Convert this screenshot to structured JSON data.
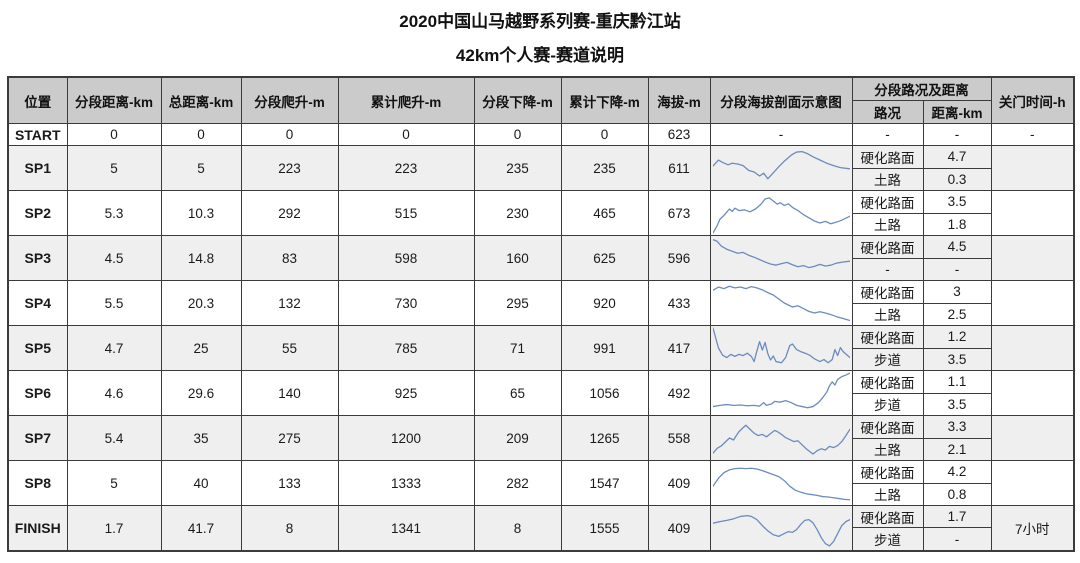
{
  "title": "2020中国山马越野系列赛-重庆黔江站",
  "subtitle": "42km个人赛-赛道说明",
  "colors": {
    "header_bg": "#cbcbcb",
    "stripe_bg": "#efefef",
    "border_dark": "#3b3b3b",
    "border_light": "#9a9a9a",
    "profile_line": "#6b8cbe"
  },
  "header": {
    "position": "位置",
    "seg_dist": "分段距离-km",
    "total_dist": "总距离-km",
    "seg_climb": "分段爬升-m",
    "cum_climb": "累计爬升-m",
    "seg_desc": "分段下降-m",
    "cum_desc": "累计下降-m",
    "altitude": "海拔-m",
    "profile": "分段海拔剖面示意图",
    "surface_group": "分段路况及距离",
    "surface": "路况",
    "surface_dist": "距离-km",
    "cutoff": "关门时间-h"
  },
  "chart_data": {
    "type": "table",
    "title": "42km个人赛-赛道说明",
    "note": "rows[].profile_points are normalized sparkline elevation profiles (x 0-100 left-right, y 0-100 top-down)"
  },
  "rows": [
    {
      "label": "START",
      "seg_dist": "0",
      "total_dist": "0",
      "seg_climb": "0",
      "cum_climb": "0",
      "seg_desc": "0",
      "cum_desc": "0",
      "altitude": "623",
      "striped": false,
      "profile_points": null,
      "profile_placeholder": "-",
      "surfaces": [
        {
          "type": "-",
          "dist": "-"
        }
      ],
      "cutoff": "-"
    },
    {
      "label": "SP1",
      "seg_dist": "5",
      "total_dist": "5",
      "seg_climb": "223",
      "cum_climb": "223",
      "seg_desc": "235",
      "cum_desc": "235",
      "altitude": "611",
      "striped": true,
      "profile_points": [
        [
          0,
          45
        ],
        [
          4,
          30
        ],
        [
          7,
          36
        ],
        [
          11,
          42
        ],
        [
          14,
          38
        ],
        [
          18,
          40
        ],
        [
          22,
          44
        ],
        [
          26,
          56
        ],
        [
          30,
          60
        ],
        [
          34,
          70
        ],
        [
          37,
          63
        ],
        [
          40,
          77
        ],
        [
          44,
          62
        ],
        [
          48,
          47
        ],
        [
          52,
          33
        ],
        [
          57,
          18
        ],
        [
          61,
          10
        ],
        [
          65,
          9
        ],
        [
          69,
          14
        ],
        [
          73,
          22
        ],
        [
          78,
          30
        ],
        [
          83,
          38
        ],
        [
          88,
          44
        ],
        [
          93,
          49
        ],
        [
          100,
          52
        ]
      ],
      "surfaces": [
        {
          "type": "硬化路面",
          "dist": "4.7"
        },
        {
          "type": "土路",
          "dist": "0.3"
        }
      ],
      "cutoff": ""
    },
    {
      "label": "SP2",
      "seg_dist": "5.3",
      "total_dist": "10.3",
      "seg_climb": "292",
      "cum_climb": "515",
      "seg_desc": "230",
      "cum_desc": "465",
      "altitude": "673",
      "striped": false,
      "profile_points": [
        [
          0,
          100
        ],
        [
          3,
          82
        ],
        [
          5,
          66
        ],
        [
          8,
          56
        ],
        [
          10,
          48
        ],
        [
          12,
          40
        ],
        [
          14,
          46
        ],
        [
          16,
          38
        ],
        [
          19,
          44
        ],
        [
          23,
          42
        ],
        [
          27,
          47
        ],
        [
          31,
          40
        ],
        [
          35,
          28
        ],
        [
          38,
          15
        ],
        [
          41,
          12
        ],
        [
          44,
          20
        ],
        [
          47,
          28
        ],
        [
          49,
          24
        ],
        [
          52,
          31
        ],
        [
          55,
          27
        ],
        [
          58,
          36
        ],
        [
          62,
          44
        ],
        [
          66,
          54
        ],
        [
          70,
          62
        ],
        [
          74,
          70
        ],
        [
          78,
          75
        ],
        [
          82,
          71
        ],
        [
          86,
          77
        ],
        [
          90,
          73
        ],
        [
          94,
          68
        ],
        [
          100,
          58
        ]
      ],
      "surfaces": [
        {
          "type": "硬化路面",
          "dist": "3.5"
        },
        {
          "type": "土路",
          "dist": "1.8"
        }
      ],
      "cutoff": ""
    },
    {
      "label": "SP3",
      "seg_dist": "4.5",
      "total_dist": "14.8",
      "seg_climb": "83",
      "cum_climb": "598",
      "seg_desc": "160",
      "cum_desc": "625",
      "altitude": "596",
      "striped": true,
      "profile_points": [
        [
          0,
          4
        ],
        [
          3,
          8
        ],
        [
          6,
          20
        ],
        [
          10,
          28
        ],
        [
          14,
          33
        ],
        [
          18,
          38
        ],
        [
          22,
          36
        ],
        [
          26,
          43
        ],
        [
          30,
          48
        ],
        [
          34,
          54
        ],
        [
          38,
          60
        ],
        [
          42,
          65
        ],
        [
          46,
          68
        ],
        [
          50,
          64
        ],
        [
          54,
          61
        ],
        [
          58,
          67
        ],
        [
          62,
          72
        ],
        [
          66,
          69
        ],
        [
          70,
          74
        ],
        [
          74,
          71
        ],
        [
          78,
          66
        ],
        [
          82,
          70
        ],
        [
          86,
          68
        ],
        [
          90,
          63
        ],
        [
          95,
          60
        ],
        [
          100,
          58
        ]
      ],
      "surfaces": [
        {
          "type": "硬化路面",
          "dist": "4.5"
        },
        {
          "type": "-",
          "dist": "-"
        }
      ],
      "cutoff": ""
    },
    {
      "label": "SP4",
      "seg_dist": "5.5",
      "total_dist": "20.3",
      "seg_climb": "132",
      "cum_climb": "730",
      "seg_desc": "295",
      "cum_desc": "920",
      "altitude": "433",
      "striped": false,
      "profile_points": [
        [
          0,
          18
        ],
        [
          4,
          10
        ],
        [
          8,
          14
        ],
        [
          12,
          8
        ],
        [
          16,
          12
        ],
        [
          20,
          10
        ],
        [
          24,
          14
        ],
        [
          28,
          9
        ],
        [
          32,
          12
        ],
        [
          36,
          17
        ],
        [
          40,
          24
        ],
        [
          44,
          30
        ],
        [
          48,
          40
        ],
        [
          52,
          50
        ],
        [
          55,
          55
        ],
        [
          58,
          60
        ],
        [
          62,
          57
        ],
        [
          66,
          64
        ],
        [
          70,
          71
        ],
        [
          74,
          75
        ],
        [
          78,
          72
        ],
        [
          82,
          75
        ],
        [
          86,
          79
        ],
        [
          90,
          84
        ],
        [
          95,
          89
        ],
        [
          100,
          94
        ]
      ],
      "surfaces": [
        {
          "type": "硬化路面",
          "dist": "3"
        },
        {
          "type": "土路",
          "dist": "2.5"
        }
      ],
      "cutoff": ""
    },
    {
      "label": "SP5",
      "seg_dist": "4.7",
      "total_dist": "25",
      "seg_climb": "55",
      "cum_climb": "785",
      "seg_desc": "71",
      "cum_desc": "991",
      "altitude": "417",
      "striped": true,
      "profile_points": [
        [
          0,
          0
        ],
        [
          2,
          25
        ],
        [
          4,
          50
        ],
        [
          7,
          68
        ],
        [
          10,
          74
        ],
        [
          13,
          66
        ],
        [
          16,
          71
        ],
        [
          19,
          66
        ],
        [
          22,
          69
        ],
        [
          25,
          63
        ],
        [
          28,
          71
        ],
        [
          30,
          84
        ],
        [
          32,
          58
        ],
        [
          34,
          34
        ],
        [
          36,
          55
        ],
        [
          38,
          36
        ],
        [
          40,
          64
        ],
        [
          42,
          80
        ],
        [
          44,
          70
        ],
        [
          46,
          84
        ],
        [
          50,
          87
        ],
        [
          53,
          74
        ],
        [
          56,
          44
        ],
        [
          58,
          40
        ],
        [
          61,
          54
        ],
        [
          64,
          59
        ],
        [
          68,
          64
        ],
        [
          71,
          69
        ],
        [
          74,
          77
        ],
        [
          78,
          84
        ],
        [
          81,
          79
        ],
        [
          84,
          87
        ],
        [
          87,
          79
        ],
        [
          89,
          54
        ],
        [
          91,
          69
        ],
        [
          93,
          49
        ],
        [
          95,
          59
        ],
        [
          100,
          74
        ]
      ],
      "surfaces": [
        {
          "type": "硬化路面",
          "dist": "1.2"
        },
        {
          "type": "步道",
          "dist": "3.5"
        }
      ],
      "cutoff": ""
    },
    {
      "label": "SP6",
      "seg_dist": "4.6",
      "total_dist": "29.6",
      "seg_climb": "140",
      "cum_climb": "925",
      "seg_desc": "65",
      "cum_desc": "1056",
      "altitude": "492",
      "striped": false,
      "profile_points": [
        [
          0,
          84
        ],
        [
          5,
          81
        ],
        [
          10,
          79
        ],
        [
          15,
          81
        ],
        [
          20,
          80
        ],
        [
          25,
          82
        ],
        [
          30,
          81
        ],
        [
          34,
          83
        ],
        [
          37,
          74
        ],
        [
          39,
          81
        ],
        [
          43,
          77
        ],
        [
          45,
          71
        ],
        [
          49,
          73
        ],
        [
          53,
          69
        ],
        [
          57,
          74
        ],
        [
          61,
          81
        ],
        [
          65,
          84
        ],
        [
          69,
          87
        ],
        [
          73,
          84
        ],
        [
          77,
          74
        ],
        [
          80,
          62
        ],
        [
          83,
          48
        ],
        [
          85,
          32
        ],
        [
          87,
          22
        ],
        [
          89,
          30
        ],
        [
          91,
          16
        ],
        [
          94,
          9
        ],
        [
          97,
          5
        ],
        [
          100,
          0
        ]
      ],
      "surfaces": [
        {
          "type": "硬化路面",
          "dist": "1.1"
        },
        {
          "type": "步道",
          "dist": "3.5"
        }
      ],
      "cutoff": ""
    },
    {
      "label": "SP7",
      "seg_dist": "5.4",
      "total_dist": "35",
      "seg_climb": "275",
      "cum_climb": "1200",
      "seg_desc": "209",
      "cum_desc": "1265",
      "altitude": "558",
      "striped": true,
      "profile_points": [
        [
          0,
          88
        ],
        [
          3,
          76
        ],
        [
          6,
          70
        ],
        [
          9,
          60
        ],
        [
          12,
          50
        ],
        [
          15,
          55
        ],
        [
          17,
          44
        ],
        [
          19,
          34
        ],
        [
          22,
          24
        ],
        [
          24,
          18
        ],
        [
          27,
          28
        ],
        [
          30,
          38
        ],
        [
          33,
          44
        ],
        [
          36,
          41
        ],
        [
          39,
          47
        ],
        [
          42,
          39
        ],
        [
          45,
          31
        ],
        [
          47,
          34
        ],
        [
          50,
          41
        ],
        [
          53,
          49
        ],
        [
          56,
          54
        ],
        [
          59,
          59
        ],
        [
          62,
          57
        ],
        [
          65,
          67
        ],
        [
          68,
          77
        ],
        [
          71,
          85
        ],
        [
          73,
          90
        ],
        [
          76,
          82
        ],
        [
          79,
          77
        ],
        [
          82,
          80
        ],
        [
          85,
          71
        ],
        [
          88,
          74
        ],
        [
          91,
          69
        ],
        [
          94,
          59
        ],
        [
          97,
          44
        ],
        [
          100,
          28
        ]
      ],
      "surfaces": [
        {
          "type": "硬化路面",
          "dist": "3.3"
        },
        {
          "type": "土路",
          "dist": "2.1"
        }
      ],
      "cutoff": ""
    },
    {
      "label": "SP8",
      "seg_dist": "5",
      "total_dist": "40",
      "seg_climb": "133",
      "cum_climb": "1333",
      "seg_desc": "282",
      "cum_desc": "1547",
      "altitude": "409",
      "striped": false,
      "profile_points": [
        [
          0,
          58
        ],
        [
          4,
          38
        ],
        [
          8,
          24
        ],
        [
          12,
          17
        ],
        [
          16,
          14
        ],
        [
          20,
          13
        ],
        [
          24,
          14
        ],
        [
          28,
          13
        ],
        [
          32,
          15
        ],
        [
          36,
          19
        ],
        [
          40,
          24
        ],
        [
          44,
          29
        ],
        [
          48,
          34
        ],
        [
          52,
          44
        ],
        [
          56,
          58
        ],
        [
          60,
          68
        ],
        [
          64,
          73
        ],
        [
          68,
          77
        ],
        [
          72,
          79
        ],
        [
          76,
          81
        ],
        [
          80,
          84
        ],
        [
          84,
          85
        ],
        [
          88,
          87
        ],
        [
          92,
          89
        ],
        [
          96,
          91
        ],
        [
          100,
          92
        ]
      ],
      "surfaces": [
        {
          "type": "硬化路面",
          "dist": "4.2"
        },
        {
          "type": "土路",
          "dist": "0.8"
        }
      ],
      "cutoff": ""
    },
    {
      "label": "FINISH",
      "seg_dist": "1.7",
      "total_dist": "41.7",
      "seg_climb": "8",
      "cum_climb": "1341",
      "seg_desc": "8",
      "cum_desc": "1555",
      "altitude": "409",
      "striped": true,
      "profile_points": [
        [
          0,
          38
        ],
        [
          5,
          34
        ],
        [
          10,
          31
        ],
        [
          15,
          27
        ],
        [
          20,
          21
        ],
        [
          25,
          19
        ],
        [
          28,
          21
        ],
        [
          32,
          29
        ],
        [
          36,
          44
        ],
        [
          40,
          57
        ],
        [
          44,
          67
        ],
        [
          48,
          71
        ],
        [
          52,
          64
        ],
        [
          55,
          59
        ],
        [
          58,
          61
        ],
        [
          61,
          54
        ],
        [
          64,
          41
        ],
        [
          67,
          31
        ],
        [
          70,
          29
        ],
        [
          73,
          37
        ],
        [
          76,
          54
        ],
        [
          79,
          74
        ],
        [
          82,
          89
        ],
        [
          85,
          95
        ],
        [
          88,
          84
        ],
        [
          91,
          64
        ],
        [
          94,
          44
        ],
        [
          97,
          34
        ],
        [
          100,
          29
        ]
      ],
      "surfaces": [
        {
          "type": "硬化路面",
          "dist": "1.7"
        },
        {
          "type": "步道",
          "dist": "-"
        }
      ],
      "cutoff": "7小时"
    }
  ]
}
